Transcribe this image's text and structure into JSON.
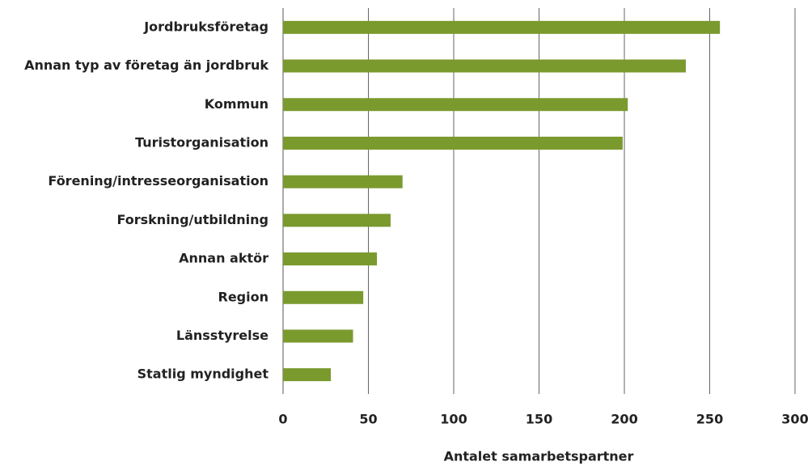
{
  "chart_data": {
    "type": "hbar",
    "categories": [
      "Jordbruksföretag",
      "Annan typ av företag än jordbruk",
      "Kommun",
      "Turistorganisation",
      "Förening/intresseorganisation",
      "Forskning/utbildning",
      "Annan aktör",
      "Region",
      "Länsstyrelse",
      "Statlig myndighet"
    ],
    "values": [
      256,
      236,
      202,
      199,
      70,
      63,
      55,
      47,
      41,
      28
    ],
    "color": "#7a9a2e",
    "xlabel": "Antalet samarbetspartner",
    "xlim": [
      0,
      300
    ],
    "xticks": [
      0,
      50,
      100,
      150,
      200,
      250,
      300
    ],
    "grid": true
  }
}
